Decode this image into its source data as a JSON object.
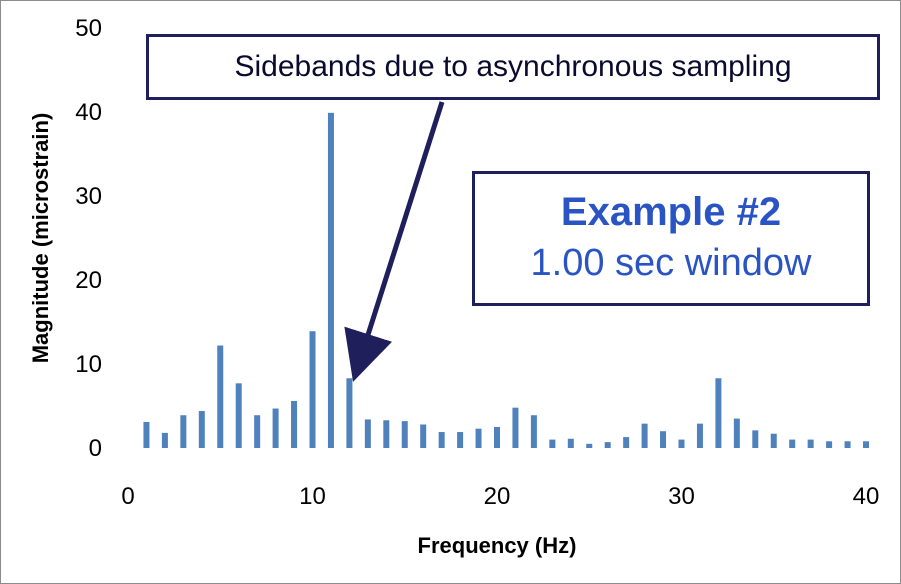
{
  "chart_data": {
    "type": "bar",
    "xlabel": "Frequency (Hz)",
    "ylabel": "Magnitude (microstrain)",
    "xlim": [
      0,
      40
    ],
    "ylim": [
      0,
      50
    ],
    "xticks": [
      "0",
      "10",
      "20",
      "30",
      "40"
    ],
    "yticks": [
      "0",
      "10",
      "20",
      "30",
      "40",
      "50"
    ],
    "grid": false,
    "bar_color": "#4f81bd",
    "x": [
      1,
      2,
      3,
      4,
      5,
      6,
      7,
      8,
      9,
      10,
      11,
      12,
      13,
      14,
      15,
      16,
      17,
      18,
      19,
      20,
      21,
      22,
      23,
      24,
      25,
      26,
      27,
      28,
      29,
      30,
      31,
      32,
      33,
      34,
      35,
      36,
      37,
      38,
      39,
      40
    ],
    "values": [
      3.1,
      1.8,
      3.9,
      4.4,
      12.2,
      7.7,
      3.9,
      4.7,
      5.6,
      13.9,
      39.9,
      8.3,
      3.4,
      3.3,
      3.2,
      2.8,
      1.9,
      1.9,
      2.3,
      2.5,
      4.8,
      3.9,
      1.0,
      1.1,
      0.5,
      0.7,
      1.3,
      2.9,
      2.0,
      1.0,
      2.9,
      8.3,
      3.5,
      2.1,
      1.7,
      1.0,
      1.0,
      0.8,
      0.8,
      0.8
    ],
    "annotations": [
      {
        "text": "Sidebands due to asynchronous sampling",
        "points_to": {
          "x": 12.5,
          "y": 10
        }
      },
      {
        "title": "Example #2",
        "subtitle": "1.00 sec window"
      }
    ],
    "accent_color": "#2a54c4",
    "arrow_color": "#1f1f5c"
  }
}
